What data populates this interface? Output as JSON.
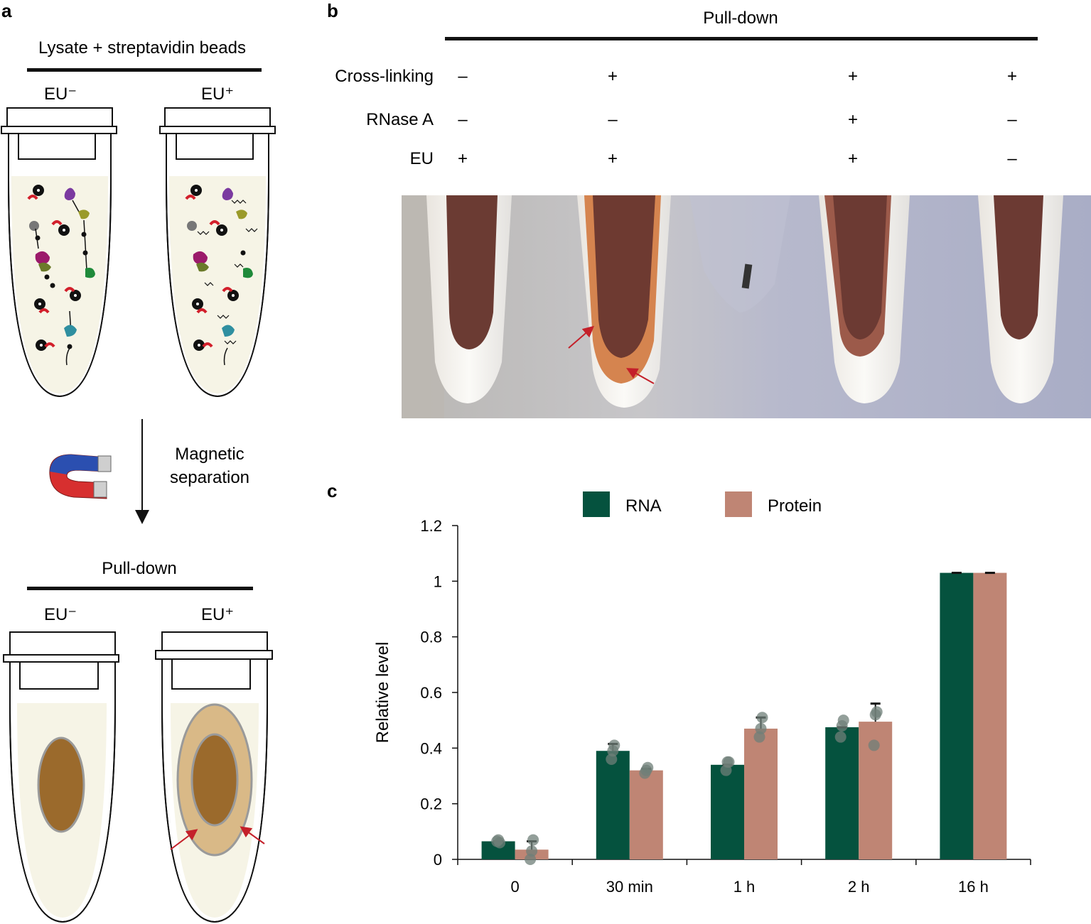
{
  "panel_a": {
    "label": "a",
    "top_title": "Lysate + streptavidin beads",
    "tube_labels": [
      "EU⁻",
      "EU⁺"
    ],
    "step_text_line1": "Magnetic",
    "step_text_line2": "separation",
    "bottom_title": "Pull-down",
    "bottom_tube_labels": [
      "EU⁻",
      "EU⁺"
    ],
    "colors": {
      "tube_fill": "#f6f4e6",
      "pellet": "#9b6a2c",
      "halo": "#d9b987",
      "arrow": "#c4202a"
    }
  },
  "panel_b": {
    "label": "b",
    "header": "Pull-down",
    "rows": [
      {
        "name": "Cross-linking",
        "values": [
          "–",
          "+",
          "+",
          "+"
        ]
      },
      {
        "name": "RNase A",
        "values": [
          "–",
          "–",
          "+",
          "–"
        ]
      },
      {
        "name": "EU",
        "values": [
          "+",
          "+",
          "+",
          "–"
        ]
      }
    ]
  },
  "panel_c": {
    "label": "c"
  },
  "chart_data": {
    "type": "bar",
    "title": "",
    "xlabel": "",
    "ylabel": "Relative level",
    "categories": [
      "0",
      "30 min",
      "1 h",
      "2 h",
      "16 h"
    ],
    "series": [
      {
        "name": "RNA",
        "color": "#05523e",
        "values": [
          0.065,
          0.39,
          0.34,
          0.475,
          1.03
        ],
        "errors": [
          0.0,
          0.025,
          0.0,
          0.0,
          0.0
        ]
      },
      {
        "name": "Protein",
        "color": "#bf8574",
        "values": [
          0.035,
          0.32,
          0.47,
          0.495,
          1.03
        ],
        "errors": [
          0.03,
          0.005,
          0.04,
          0.065,
          0.0
        ]
      }
    ],
    "points": {
      "RNA": [
        [
          0.065,
          0.07,
          0.06
        ],
        [
          0.36,
          0.39,
          0.41
        ],
        [
          0.32,
          0.35,
          0.35
        ],
        [
          0.44,
          0.48,
          0.5
        ],
        [
          1.03,
          1.03,
          1.03
        ]
      ],
      "Protein": [
        [
          0.0,
          0.03,
          0.07
        ],
        [
          0.31,
          0.32,
          0.33
        ],
        [
          0.44,
          0.47,
          0.51
        ],
        [
          0.41,
          0.52,
          0.53
        ],
        [
          1.03,
          1.03,
          1.03
        ]
      ]
    },
    "ylim": [
      0,
      1.2
    ],
    "yticks": [
      "0",
      "0.2",
      "0.4",
      "0.6",
      "0.8",
      "1",
      "1.2"
    ],
    "legend": "top"
  }
}
